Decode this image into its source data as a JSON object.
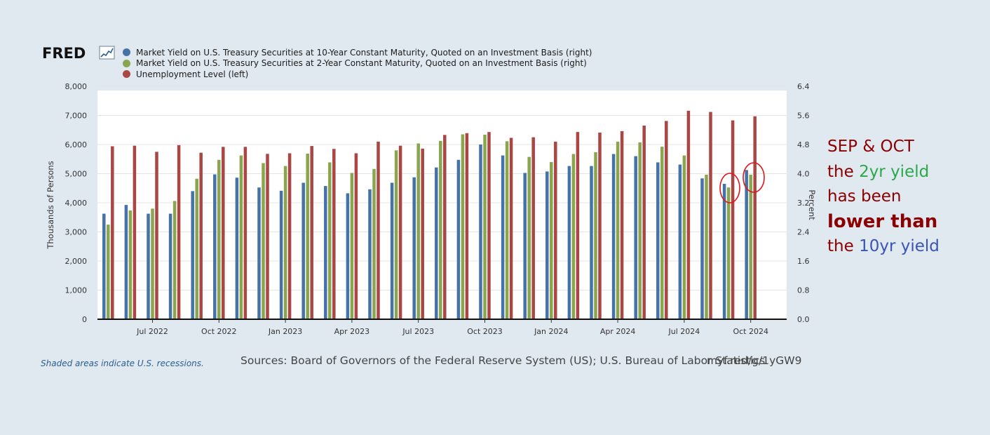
{
  "brand": "FRED",
  "legend": [
    {
      "label": "Market Yield on U.S. Treasury Securities at 10-Year Constant Maturity, Quoted on an Investment Basis (right)",
      "color": "#4572a7"
    },
    {
      "label": "Market Yield on U.S. Treasury Securities at 2-Year Constant Maturity, Quoted on an Investment Basis (right)",
      "color": "#89a54e"
    },
    {
      "label": "Unemployment Level (left)",
      "color": "#aa4643"
    }
  ],
  "footer": {
    "recession_note": "Shaded areas indicate U.S. recessions.",
    "sources": "Sources: Board of Governors of the Federal Reserve System (US); U.S. Bureau of Labor Statistics",
    "short_url": "myf.red/g/1yGW9"
  },
  "annotation": {
    "line1": "SEP & OCT",
    "line2_a": "the ",
    "line2_b": "2yr yield",
    "line3": "has been",
    "line4": "lower than",
    "line5_a": "the ",
    "line5_b": "10yr yield"
  },
  "chart_data": {
    "type": "bar",
    "ylabel_left": "Thousands of Persons",
    "ylabel_right": "Percent",
    "ylim_left": [
      0,
      8000
    ],
    "ylim_right": [
      0,
      6.4
    ],
    "yticks_left": [
      "0",
      "1,000",
      "2,000",
      "3,000",
      "4,000",
      "5,000",
      "6,000",
      "7,000",
      "8,000"
    ],
    "yticks_right": [
      "0.0",
      "0.8",
      "1.6",
      "2.4",
      "3.2",
      "4.0",
      "4.8",
      "5.6",
      "6.4"
    ],
    "xtick_labels": [
      "Jul 2022",
      "Oct 2022",
      "Jan 2023",
      "Apr 2023",
      "Jul 2023",
      "Oct 2023",
      "Jan 2024",
      "Apr 2024",
      "Jul 2024",
      "Oct 2024"
    ],
    "xtick_index": [
      2,
      5,
      8,
      11,
      14,
      17,
      20,
      23,
      26,
      29
    ],
    "grid": true,
    "legend_position": "top-left",
    "categories": [
      "2022-05",
      "2022-06",
      "2022-07",
      "2022-08",
      "2022-09",
      "2022-10",
      "2022-11",
      "2022-12",
      "2023-01",
      "2023-02",
      "2023-03",
      "2023-04",
      "2023-05",
      "2023-06",
      "2023-07",
      "2023-08",
      "2023-09",
      "2023-10",
      "2023-11",
      "2023-12",
      "2024-01",
      "2024-02",
      "2024-03",
      "2024-04",
      "2024-05",
      "2024-06",
      "2024-07",
      "2024-08",
      "2024-09",
      "2024-10"
    ],
    "series": [
      {
        "name": "Market Yield on U.S. Treasury Securities at 10-Year Constant Maturity, Quoted on an Investment Basis (right)",
        "axis": "right",
        "color": "#4572a7",
        "values": [
          2.9,
          3.14,
          2.9,
          2.9,
          3.52,
          3.98,
          3.89,
          3.62,
          3.53,
          3.75,
          3.66,
          3.46,
          3.57,
          3.75,
          3.9,
          4.17,
          4.38,
          4.8,
          4.5,
          4.02,
          4.06,
          4.21,
          4.21,
          4.54,
          4.48,
          4.31,
          4.25,
          3.87,
          3.72,
          4.1
        ]
      },
      {
        "name": "Market Yield on U.S. Treasury Securities at 2-Year Constant Maturity, Quoted on an Investment Basis (right)",
        "axis": "right",
        "color": "#89a54e",
        "values": [
          2.6,
          2.99,
          3.04,
          3.25,
          3.86,
          4.38,
          4.5,
          4.29,
          4.21,
          4.55,
          4.31,
          4.02,
          4.13,
          4.64,
          4.83,
          4.9,
          5.08,
          5.07,
          4.89,
          4.46,
          4.32,
          4.54,
          4.59,
          4.88,
          4.86,
          4.74,
          4.5,
          3.97,
          3.62,
          3.97
        ]
      },
      {
        "name": "Unemployment Level (left)",
        "axis": "left",
        "color": "#aa4643",
        "values": [
          5940,
          5960,
          5750,
          5980,
          5720,
          5920,
          5920,
          5680,
          5700,
          5950,
          5850,
          5700,
          6100,
          5960,
          5860,
          6330,
          6390,
          6430,
          6230,
          6250,
          6100,
          6430,
          6410,
          6460,
          6650,
          6810,
          7160,
          7120,
          6830,
          6970
        ]
      }
    ]
  }
}
